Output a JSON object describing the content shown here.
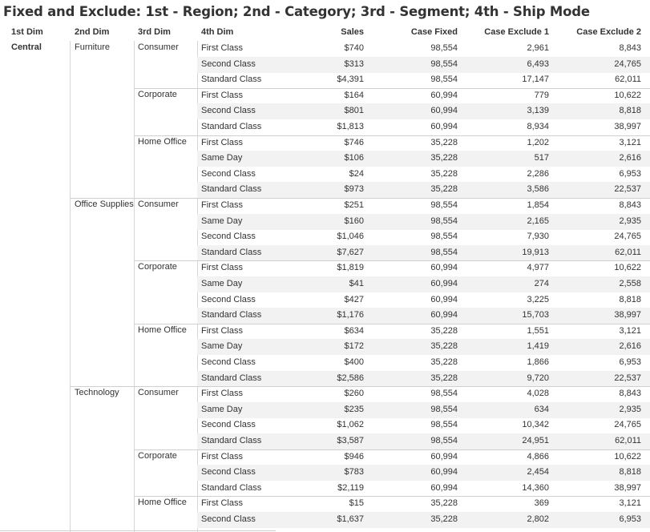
{
  "title": "Fixed and Exclude: 1st - Region; 2nd - Category; 3rd - Segment; 4th - Ship Mode",
  "headers": {
    "dim1": "1st Dim",
    "dim2": "2nd Dim",
    "dim3": "3rd Dim",
    "dim4": "4th Dim",
    "sales": "Sales",
    "case_fixed": "Case Fixed",
    "case_exclude_1": "Case Exclude 1",
    "case_exclude_2": "Case Exclude 2"
  },
  "region": "Central",
  "categories": [
    {
      "name": "Furniture",
      "segments": [
        {
          "name": "Consumer",
          "rows": [
            {
              "mode": "First Class",
              "sales": "$740",
              "fixed": "98,554",
              "ex1": "2,961",
              "ex2": "8,843"
            },
            {
              "mode": "Second Class",
              "sales": "$313",
              "fixed": "98,554",
              "ex1": "6,493",
              "ex2": "24,765"
            },
            {
              "mode": "Standard Class",
              "sales": "$4,391",
              "fixed": "98,554",
              "ex1": "17,147",
              "ex2": "62,011"
            }
          ]
        },
        {
          "name": "Corporate",
          "rows": [
            {
              "mode": "First Class",
              "sales": "$164",
              "fixed": "60,994",
              "ex1": "779",
              "ex2": "10,622"
            },
            {
              "mode": "Second Class",
              "sales": "$801",
              "fixed": "60,994",
              "ex1": "3,139",
              "ex2": "8,818"
            },
            {
              "mode": "Standard Class",
              "sales": "$1,813",
              "fixed": "60,994",
              "ex1": "8,934",
              "ex2": "38,997"
            }
          ]
        },
        {
          "name": "Home Office",
          "rows": [
            {
              "mode": "First Class",
              "sales": "$746",
              "fixed": "35,228",
              "ex1": "1,202",
              "ex2": "3,121"
            },
            {
              "mode": "Same Day",
              "sales": "$106",
              "fixed": "35,228",
              "ex1": "517",
              "ex2": "2,616"
            },
            {
              "mode": "Second Class",
              "sales": "$24",
              "fixed": "35,228",
              "ex1": "2,286",
              "ex2": "6,953"
            },
            {
              "mode": "Standard Class",
              "sales": "$973",
              "fixed": "35,228",
              "ex1": "3,586",
              "ex2": "22,537"
            }
          ]
        }
      ]
    },
    {
      "name": "Office Supplies",
      "segments": [
        {
          "name": "Consumer",
          "rows": [
            {
              "mode": "First Class",
              "sales": "$251",
              "fixed": "98,554",
              "ex1": "1,854",
              "ex2": "8,843"
            },
            {
              "mode": "Same Day",
              "sales": "$160",
              "fixed": "98,554",
              "ex1": "2,165",
              "ex2": "2,935"
            },
            {
              "mode": "Second Class",
              "sales": "$1,046",
              "fixed": "98,554",
              "ex1": "7,930",
              "ex2": "24,765"
            },
            {
              "mode": "Standard Class",
              "sales": "$7,627",
              "fixed": "98,554",
              "ex1": "19,913",
              "ex2": "62,011"
            }
          ]
        },
        {
          "name": "Corporate",
          "rows": [
            {
              "mode": "First Class",
              "sales": "$1,819",
              "fixed": "60,994",
              "ex1": "4,977",
              "ex2": "10,622"
            },
            {
              "mode": "Same Day",
              "sales": "$41",
              "fixed": "60,994",
              "ex1": "274",
              "ex2": "2,558"
            },
            {
              "mode": "Second Class",
              "sales": "$427",
              "fixed": "60,994",
              "ex1": "3,225",
              "ex2": "8,818"
            },
            {
              "mode": "Standard Class",
              "sales": "$1,176",
              "fixed": "60,994",
              "ex1": "15,703",
              "ex2": "38,997"
            }
          ]
        },
        {
          "name": "Home Office",
          "rows": [
            {
              "mode": "First Class",
              "sales": "$634",
              "fixed": "35,228",
              "ex1": "1,551",
              "ex2": "3,121"
            },
            {
              "mode": "Same Day",
              "sales": "$172",
              "fixed": "35,228",
              "ex1": "1,419",
              "ex2": "2,616"
            },
            {
              "mode": "Second Class",
              "sales": "$400",
              "fixed": "35,228",
              "ex1": "1,866",
              "ex2": "6,953"
            },
            {
              "mode": "Standard Class",
              "sales": "$2,586",
              "fixed": "35,228",
              "ex1": "9,720",
              "ex2": "22,537"
            }
          ]
        }
      ]
    },
    {
      "name": "Technology",
      "segments": [
        {
          "name": "Consumer",
          "rows": [
            {
              "mode": "First Class",
              "sales": "$260",
              "fixed": "98,554",
              "ex1": "4,028",
              "ex2": "8,843"
            },
            {
              "mode": "Same Day",
              "sales": "$235",
              "fixed": "98,554",
              "ex1": "634",
              "ex2": "2,935"
            },
            {
              "mode": "Second Class",
              "sales": "$1,062",
              "fixed": "98,554",
              "ex1": "10,342",
              "ex2": "24,765"
            },
            {
              "mode": "Standard Class",
              "sales": "$3,587",
              "fixed": "98,554",
              "ex1": "24,951",
              "ex2": "62,011"
            }
          ]
        },
        {
          "name": "Corporate",
          "rows": [
            {
              "mode": "First Class",
              "sales": "$946",
              "fixed": "60,994",
              "ex1": "4,866",
              "ex2": "10,622"
            },
            {
              "mode": "Second Class",
              "sales": "$783",
              "fixed": "60,994",
              "ex1": "2,454",
              "ex2": "8,818"
            },
            {
              "mode": "Standard Class",
              "sales": "$2,119",
              "fixed": "60,994",
              "ex1": "14,360",
              "ex2": "38,997"
            }
          ]
        },
        {
          "name": "Home Office",
          "rows": [
            {
              "mode": "First Class",
              "sales": "$15",
              "fixed": "35,228",
              "ex1": "369",
              "ex2": "3,121"
            },
            {
              "mode": "Second Class",
              "sales": "$1,637",
              "fixed": "35,228",
              "ex1": "2,802",
              "ex2": "6,953"
            }
          ]
        }
      ]
    }
  ]
}
